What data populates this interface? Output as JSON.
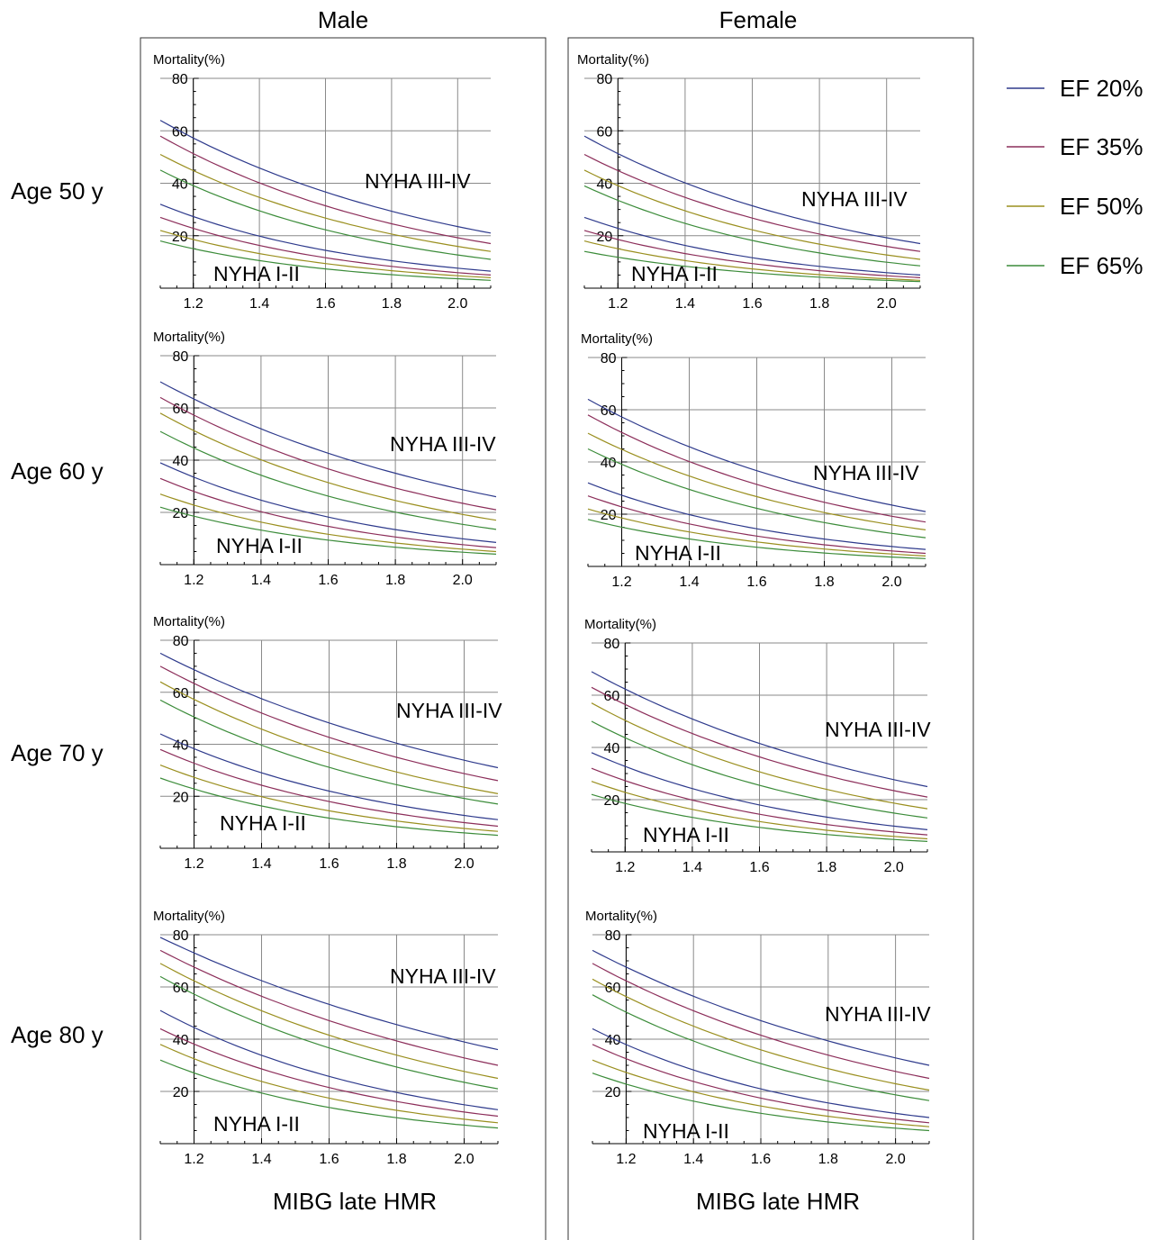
{
  "columns": [
    {
      "header": "Male",
      "xlabel": "MIBG late HMR"
    },
    {
      "header": "Female",
      "xlabel": "MIBG late HMR"
    }
  ],
  "rows": [
    "Age 50 y",
    "Age 60 y",
    "Age 70 y",
    "Age 80 y"
  ],
  "legend": {
    "placement": "top-right",
    "items": [
      {
        "label": "EF 20%",
        "color": "#2e3a8c"
      },
      {
        "label": "EF 35%",
        "color": "#8c2e5a"
      },
      {
        "label": "EF 50%",
        "color": "#9a8f1f"
      },
      {
        "label": "EF 65%",
        "color": "#3c8c3a"
      }
    ]
  },
  "chart_data": [
    {
      "type": "line",
      "panel": "Male, Age 50 y",
      "ylabel": "Mortality(%)",
      "xlim": [
        1.1,
        2.1
      ],
      "ylim": [
        0,
        80
      ],
      "xticks": [
        "1.2",
        "1.4",
        "1.6",
        "1.8",
        "2.0"
      ],
      "yticks": [
        "20",
        "40",
        "60",
        "80"
      ],
      "grid": true,
      "x": [
        1.1,
        2.1
      ],
      "annotations": [
        "NYHA III-IV",
        "NYHA I-II"
      ],
      "series": [
        {
          "group": "NYHA III-IV",
          "ef": "EF 20%",
          "values": [
            64,
            21
          ]
        },
        {
          "group": "NYHA III-IV",
          "ef": "EF 35%",
          "values": [
            58,
            17
          ]
        },
        {
          "group": "NYHA III-IV",
          "ef": "EF 50%",
          "values": [
            51,
            14
          ]
        },
        {
          "group": "NYHA III-IV",
          "ef": "EF 65%",
          "values": [
            45,
            11
          ]
        },
        {
          "group": "NYHA I-II",
          "ef": "EF 20%",
          "values": [
            32,
            6.5
          ]
        },
        {
          "group": "NYHA I-II",
          "ef": "EF 35%",
          "values": [
            27,
            5
          ]
        },
        {
          "group": "NYHA I-II",
          "ef": "EF 50%",
          "values": [
            22,
            4
          ]
        },
        {
          "group": "NYHA I-II",
          "ef": "EF 65%",
          "values": [
            18,
            3
          ]
        }
      ]
    },
    {
      "type": "line",
      "panel": "Female, Age 50 y",
      "ylabel": "Mortality(%)",
      "xlim": [
        1.1,
        2.1
      ],
      "ylim": [
        0,
        80
      ],
      "xticks": [
        "1.2",
        "1.4",
        "1.6",
        "1.8",
        "2.0"
      ],
      "yticks": [
        "20",
        "40",
        "60",
        "80"
      ],
      "grid": true,
      "x": [
        1.1,
        2.1
      ],
      "annotations": [
        "NYHA III-IV",
        "NYHA I-II"
      ],
      "series": [
        {
          "group": "NYHA III-IV",
          "ef": "EF 20%",
          "values": [
            58,
            17
          ]
        },
        {
          "group": "NYHA III-IV",
          "ef": "EF 35%",
          "values": [
            51,
            14
          ]
        },
        {
          "group": "NYHA III-IV",
          "ef": "EF 50%",
          "values": [
            45,
            11
          ]
        },
        {
          "group": "NYHA III-IV",
          "ef": "EF 65%",
          "values": [
            39,
            8.5
          ]
        },
        {
          "group": "NYHA I-II",
          "ef": "EF 20%",
          "values": [
            27,
            5
          ]
        },
        {
          "group": "NYHA I-II",
          "ef": "EF 35%",
          "values": [
            22,
            4
          ]
        },
        {
          "group": "NYHA I-II",
          "ef": "EF 50%",
          "values": [
            18,
            3
          ]
        },
        {
          "group": "NYHA I-II",
          "ef": "EF 65%",
          "values": [
            14,
            2.5
          ]
        }
      ]
    },
    {
      "type": "line",
      "panel": "Male, Age 60 y",
      "ylabel": "Mortality(%)",
      "xlim": [
        1.1,
        2.1
      ],
      "ylim": [
        0,
        80
      ],
      "xticks": [
        "1.2",
        "1.4",
        "1.6",
        "1.8",
        "2.0"
      ],
      "yticks": [
        "20",
        "40",
        "60",
        "80"
      ],
      "grid": true,
      "x": [
        1.1,
        2.1
      ],
      "annotations": [
        "NYHA III-IV",
        "NYHA I-II"
      ],
      "series": [
        {
          "group": "NYHA III-IV",
          "ef": "EF 20%",
          "values": [
            70,
            26
          ]
        },
        {
          "group": "NYHA III-IV",
          "ef": "EF 35%",
          "values": [
            64,
            21
          ]
        },
        {
          "group": "NYHA III-IV",
          "ef": "EF 50%",
          "values": [
            58,
            17
          ]
        },
        {
          "group": "NYHA III-IV",
          "ef": "EF 65%",
          "values": [
            51,
            13.5
          ]
        },
        {
          "group": "NYHA I-II",
          "ef": "EF 20%",
          "values": [
            39,
            8.5
          ]
        },
        {
          "group": "NYHA I-II",
          "ef": "EF 35%",
          "values": [
            33,
            6.5
          ]
        },
        {
          "group": "NYHA I-II",
          "ef": "EF 50%",
          "values": [
            27,
            5
          ]
        },
        {
          "group": "NYHA I-II",
          "ef": "EF 65%",
          "values": [
            22,
            4
          ]
        }
      ]
    },
    {
      "type": "line",
      "panel": "Female, Age 60 y",
      "ylabel": "Mortality(%)",
      "xlim": [
        1.1,
        2.1
      ],
      "ylim": [
        0,
        80
      ],
      "xticks": [
        "1.2",
        "1.4",
        "1.6",
        "1.8",
        "2.0"
      ],
      "yticks": [
        "20",
        "40",
        "60",
        "80"
      ],
      "grid": true,
      "x": [
        1.1,
        2.1
      ],
      "annotations": [
        "NYHA III-IV",
        "NYHA I-II"
      ],
      "series": [
        {
          "group": "NYHA III-IV",
          "ef": "EF 20%",
          "values": [
            64,
            21
          ]
        },
        {
          "group": "NYHA III-IV",
          "ef": "EF 35%",
          "values": [
            58,
            17
          ]
        },
        {
          "group": "NYHA III-IV",
          "ef": "EF 50%",
          "values": [
            51,
            14
          ]
        },
        {
          "group": "NYHA III-IV",
          "ef": "EF 65%",
          "values": [
            45,
            11
          ]
        },
        {
          "group": "NYHA I-II",
          "ef": "EF 20%",
          "values": [
            32,
            6.5
          ]
        },
        {
          "group": "NYHA I-II",
          "ef": "EF 35%",
          "values": [
            27,
            5
          ]
        },
        {
          "group": "NYHA I-II",
          "ef": "EF 50%",
          "values": [
            22,
            4
          ]
        },
        {
          "group": "NYHA I-II",
          "ef": "EF 65%",
          "values": [
            18,
            3
          ]
        }
      ]
    },
    {
      "type": "line",
      "panel": "Male, Age 70 y",
      "ylabel": "Mortality(%)",
      "xlim": [
        1.1,
        2.1
      ],
      "ylim": [
        0,
        80
      ],
      "xticks": [
        "1.2",
        "1.4",
        "1.6",
        "1.8",
        "2.0"
      ],
      "yticks": [
        "20",
        "40",
        "60",
        "80"
      ],
      "grid": true,
      "x": [
        1.1,
        2.1
      ],
      "annotations": [
        "NYHA III-IV",
        "NYHA I-II"
      ],
      "series": [
        {
          "group": "NYHA III-IV",
          "ef": "EF 20%",
          "values": [
            75,
            31
          ]
        },
        {
          "group": "NYHA III-IV",
          "ef": "EF 35%",
          "values": [
            70,
            26
          ]
        },
        {
          "group": "NYHA III-IV",
          "ef": "EF 50%",
          "values": [
            64,
            21
          ]
        },
        {
          "group": "NYHA III-IV",
          "ef": "EF 65%",
          "values": [
            57,
            17
          ]
        },
        {
          "group": "NYHA I-II",
          "ef": "EF 20%",
          "values": [
            44,
            11
          ]
        },
        {
          "group": "NYHA I-II",
          "ef": "EF 35%",
          "values": [
            38,
            8.5
          ]
        },
        {
          "group": "NYHA I-II",
          "ef": "EF 50%",
          "values": [
            32,
            6.5
          ]
        },
        {
          "group": "NYHA I-II",
          "ef": "EF 65%",
          "values": [
            27,
            5
          ]
        }
      ]
    },
    {
      "type": "line",
      "panel": "Female, Age 70 y",
      "ylabel": "Mortality(%)",
      "xlim": [
        1.1,
        2.1
      ],
      "ylim": [
        0,
        80
      ],
      "xticks": [
        "1.2",
        "1.4",
        "1.6",
        "1.8",
        "2.0"
      ],
      "yticks": [
        "20",
        "40",
        "60",
        "80"
      ],
      "grid": true,
      "x": [
        1.1,
        2.1
      ],
      "annotations": [
        "NYHA III-IV",
        "NYHA I-II"
      ],
      "series": [
        {
          "group": "NYHA III-IV",
          "ef": "EF 20%",
          "values": [
            69,
            25
          ]
        },
        {
          "group": "NYHA III-IV",
          "ef": "EF 35%",
          "values": [
            63,
            21
          ]
        },
        {
          "group": "NYHA III-IV",
          "ef": "EF 50%",
          "values": [
            57,
            16.5
          ]
        },
        {
          "group": "NYHA III-IV",
          "ef": "EF 65%",
          "values": [
            50,
            13
          ]
        },
        {
          "group": "NYHA I-II",
          "ef": "EF 20%",
          "values": [
            38,
            8.5
          ]
        },
        {
          "group": "NYHA I-II",
          "ef": "EF 35%",
          "values": [
            32,
            6.5
          ]
        },
        {
          "group": "NYHA I-II",
          "ef": "EF 50%",
          "values": [
            27,
            5
          ]
        },
        {
          "group": "NYHA I-II",
          "ef": "EF 65%",
          "values": [
            22,
            4
          ]
        }
      ]
    },
    {
      "type": "line",
      "panel": "Male, Age 80 y",
      "ylabel": "Mortality(%)",
      "xlim": [
        1.1,
        2.1
      ],
      "ylim": [
        0,
        80
      ],
      "xticks": [
        "1.2",
        "1.4",
        "1.6",
        "1.8",
        "2.0"
      ],
      "yticks": [
        "20",
        "40",
        "60",
        "80"
      ],
      "grid": true,
      "x": [
        1.1,
        2.1
      ],
      "annotations": [
        "NYHA III-IV",
        "NYHA I-II"
      ],
      "series": [
        {
          "group": "NYHA III-IV",
          "ef": "EF 20%",
          "values": [
            79,
            36
          ]
        },
        {
          "group": "NYHA III-IV",
          "ef": "EF 35%",
          "values": [
            74,
            30
          ]
        },
        {
          "group": "NYHA III-IV",
          "ef": "EF 50%",
          "values": [
            69,
            25
          ]
        },
        {
          "group": "NYHA III-IV",
          "ef": "EF 65%",
          "values": [
            64,
            21
          ]
        },
        {
          "group": "NYHA I-II",
          "ef": "EF 20%",
          "values": [
            51,
            13
          ]
        },
        {
          "group": "NYHA I-II",
          "ef": "EF 35%",
          "values": [
            44,
            10.5
          ]
        },
        {
          "group": "NYHA I-II",
          "ef": "EF 50%",
          "values": [
            38,
            8
          ]
        },
        {
          "group": "NYHA I-II",
          "ef": "EF 65%",
          "values": [
            32,
            6
          ]
        }
      ]
    },
    {
      "type": "line",
      "panel": "Female, Age 80 y",
      "ylabel": "Mortality(%)",
      "xlim": [
        1.1,
        2.1
      ],
      "ylim": [
        0,
        80
      ],
      "xticks": [
        "1.2",
        "1.4",
        "1.6",
        "1.8",
        "2.0"
      ],
      "yticks": [
        "20",
        "40",
        "60",
        "80"
      ],
      "grid": true,
      "x": [
        1.1,
        2.1
      ],
      "annotations": [
        "NYHA III-IV",
        "NYHA I-II"
      ],
      "series": [
        {
          "group": "NYHA III-IV",
          "ef": "EF 20%",
          "values": [
            74,
            30
          ]
        },
        {
          "group": "NYHA III-IV",
          "ef": "EF 35%",
          "values": [
            69,
            25
          ]
        },
        {
          "group": "NYHA III-IV",
          "ef": "EF 50%",
          "values": [
            63,
            20.5
          ]
        },
        {
          "group": "NYHA III-IV",
          "ef": "EF 65%",
          "values": [
            57,
            16.5
          ]
        },
        {
          "group": "NYHA I-II",
          "ef": "EF 20%",
          "values": [
            44,
            10
          ]
        },
        {
          "group": "NYHA I-II",
          "ef": "EF 35%",
          "values": [
            38,
            8
          ]
        },
        {
          "group": "NYHA I-II",
          "ef": "EF 50%",
          "values": [
            32,
            6.5
          ]
        },
        {
          "group": "NYHA I-II",
          "ef": "EF 65%",
          "values": [
            27,
            5
          ]
        }
      ]
    }
  ]
}
